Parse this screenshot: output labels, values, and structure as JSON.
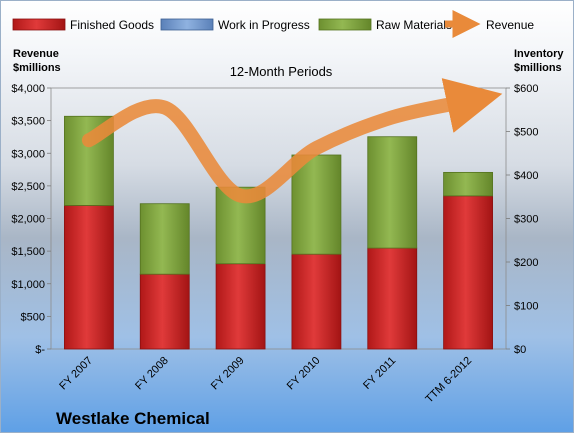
{
  "chart_data": {
    "type": "bar",
    "stacked": true,
    "subtitle": "12-Month Periods",
    "company": "Westlake Chemical",
    "left_axis_label": [
      "Revenue",
      "$millions"
    ],
    "right_axis_label": [
      "Inventory",
      "$millions"
    ],
    "categories": [
      "FY 2007",
      "FY 2008",
      "FY 2009",
      "FY 2010",
      "FY 2011",
      "TTM 6-2012"
    ],
    "left_ticks": [
      "$-",
      "$500",
      "$1,000",
      "$1,500",
      "$2,000",
      "$2,500",
      "$3,000",
      "$3,500",
      "$4,000"
    ],
    "right_ticks": [
      "$0",
      "$100",
      "$200",
      "$300",
      "$400",
      "$500",
      "$600"
    ],
    "left_ylim": [
      0,
      4000
    ],
    "right_ylim": [
      0,
      600
    ],
    "legend": [
      "Finished Goods",
      "Work in Progress",
      "Raw Materials",
      "Revenue"
    ],
    "legend_position": "top",
    "series": [
      {
        "name": "Finished Goods",
        "axis": "right",
        "color": "#d02a2a",
        "values": [
          330,
          172,
          196,
          218,
          232,
          352
        ]
      },
      {
        "name": "Work in Progress",
        "axis": "right",
        "color": "#6f97cf",
        "values": [
          0,
          0,
          0,
          0,
          0,
          0
        ]
      },
      {
        "name": "Raw Materials",
        "axis": "right",
        "color": "#86ac44",
        "values": [
          205,
          162,
          176,
          228,
          256,
          54
        ]
      },
      {
        "name": "Revenue",
        "axis": "left",
        "type": "line",
        "color": "#e98a3a",
        "values": [
          3200,
          3700,
          2350,
          3080,
          3550,
          3800
        ]
      }
    ]
  }
}
